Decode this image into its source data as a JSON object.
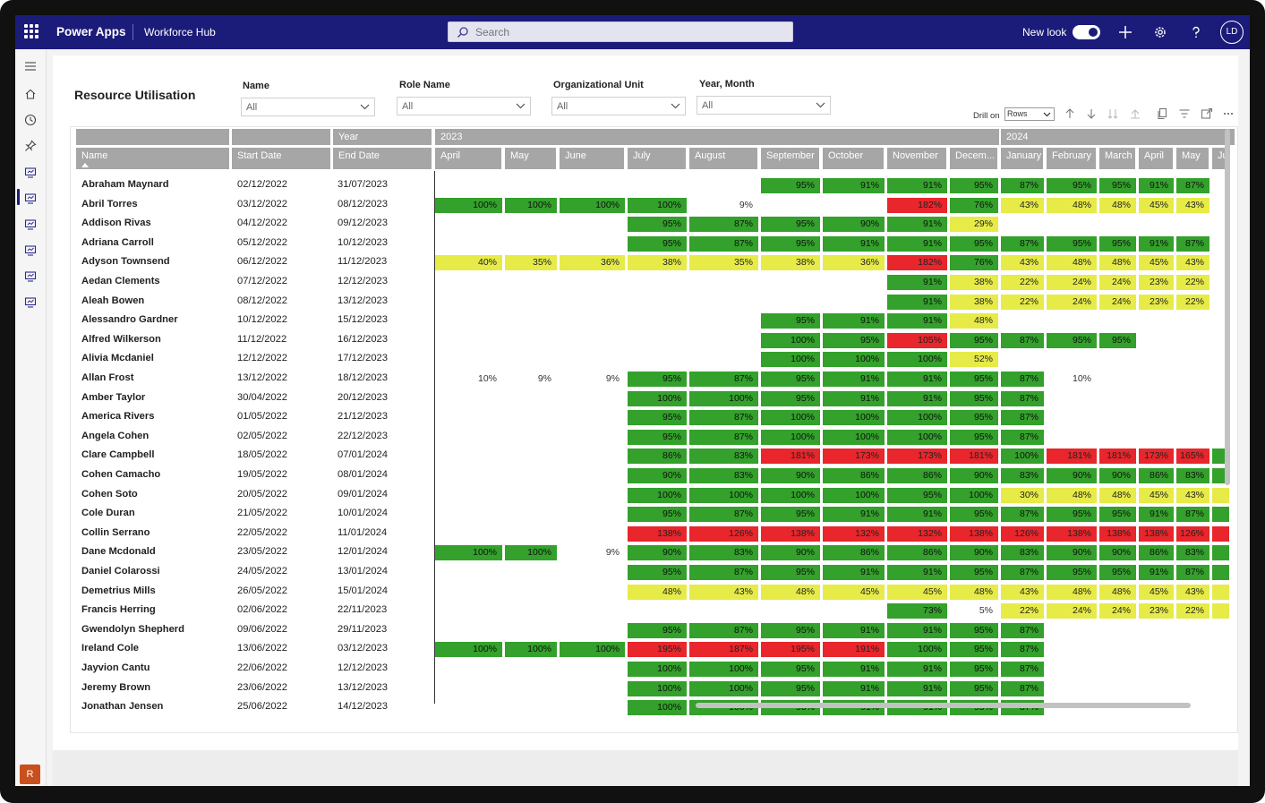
{
  "app": {
    "title": "Power Apps",
    "hub": "Workforce Hub",
    "search_placeholder": "Search",
    "new_look_label": "New look",
    "new_look_on": true,
    "user_initials": "LD",
    "nav_initial": "R"
  },
  "report": {
    "title": "Resource Utilisation",
    "slicers": [
      {
        "label": "Name",
        "value": "All"
      },
      {
        "label": "Role Name",
        "value": "All"
      },
      {
        "label": "Organizational Unit",
        "value": "All"
      },
      {
        "label": "Year, Month",
        "value": "All"
      }
    ],
    "drill_label": "Drill on",
    "drill_value": "Rows"
  },
  "table": {
    "row_header_labels": [
      "Name",
      "Start Date",
      "End Date"
    ],
    "year_header_label": "Year",
    "years": [
      {
        "label": "2023",
        "months": [
          "April",
          "May",
          "June",
          "July",
          "August",
          "September",
          "October",
          "November",
          "Decem..."
        ]
      },
      {
        "label": "2024",
        "months": [
          "January",
          "February",
          "March",
          "April",
          "May",
          "Ju"
        ]
      }
    ],
    "rows": [
      {
        "name": "Abraham Maynard",
        "start": "02/12/2022",
        "end": "31/07/2023",
        "cells": [
          null,
          null,
          null,
          null,
          null,
          "95%",
          "91%",
          "91%",
          "95%",
          "87%",
          "95%",
          "95%",
          "91%",
          "87%",
          null
        ]
      },
      {
        "name": "Abril Torres",
        "start": "03/12/2022",
        "end": "08/12/2023",
        "cells": [
          "100%",
          "100%",
          "100%",
          "100%",
          "9%",
          null,
          null,
          "182%",
          "76%",
          "43%",
          "48%",
          "48%",
          "45%",
          "43%",
          null
        ]
      },
      {
        "name": "Addison Rivas",
        "start": "04/12/2022",
        "end": "09/12/2023",
        "cells": [
          null,
          null,
          null,
          "95%",
          "87%",
          "95%",
          "90%",
          "91%",
          "29%",
          null,
          null,
          null,
          null,
          null,
          null
        ]
      },
      {
        "name": "Adriana Carroll",
        "start": "05/12/2022",
        "end": "10/12/2023",
        "cells": [
          null,
          null,
          null,
          "95%",
          "87%",
          "95%",
          "91%",
          "91%",
          "95%",
          "87%",
          "95%",
          "95%",
          "91%",
          "87%",
          null
        ]
      },
      {
        "name": "Adyson Townsend",
        "start": "06/12/2022",
        "end": "11/12/2023",
        "cells": [
          "40%",
          "35%",
          "36%",
          "38%",
          "35%",
          "38%",
          "36%",
          "182%",
          "76%",
          "43%",
          "48%",
          "48%",
          "45%",
          "43%",
          null
        ]
      },
      {
        "name": "Aedan Clements",
        "start": "07/12/2022",
        "end": "12/12/2023",
        "cells": [
          null,
          null,
          null,
          null,
          null,
          null,
          null,
          "91%",
          "38%",
          "22%",
          "24%",
          "24%",
          "23%",
          "22%",
          null
        ]
      },
      {
        "name": "Aleah Bowen",
        "start": "08/12/2022",
        "end": "13/12/2023",
        "cells": [
          null,
          null,
          null,
          null,
          null,
          null,
          null,
          "91%",
          "38%",
          "22%",
          "24%",
          "24%",
          "23%",
          "22%",
          null
        ]
      },
      {
        "name": "Alessandro Gardner",
        "start": "10/12/2022",
        "end": "15/12/2023",
        "cells": [
          null,
          null,
          null,
          null,
          null,
          "95%",
          "91%",
          "91%",
          "48%",
          null,
          null,
          null,
          null,
          null,
          null
        ]
      },
      {
        "name": "Alfred Wilkerson",
        "start": "11/12/2022",
        "end": "16/12/2023",
        "cells": [
          null,
          null,
          null,
          null,
          null,
          "100%",
          "95%",
          "105%",
          "95%",
          "87%",
          "95%",
          "95%",
          null,
          null,
          null
        ]
      },
      {
        "name": "Alivia Mcdaniel",
        "start": "12/12/2022",
        "end": "17/12/2023",
        "cells": [
          null,
          null,
          null,
          null,
          null,
          "100%",
          "100%",
          "100%",
          "52%",
          null,
          null,
          null,
          null,
          null,
          null
        ]
      },
      {
        "name": "Allan Frost",
        "start": "13/12/2022",
        "end": "18/12/2023",
        "cells": [
          "10%",
          "9%",
          "9%",
          "95%",
          "87%",
          "95%",
          "91%",
          "91%",
          "95%",
          "87%",
          "10%",
          null,
          null,
          null,
          null
        ]
      },
      {
        "name": "Amber Taylor",
        "start": "30/04/2022",
        "end": "20/12/2023",
        "cells": [
          null,
          null,
          null,
          "100%",
          "100%",
          "95%",
          "91%",
          "91%",
          "95%",
          "87%",
          null,
          null,
          null,
          null,
          null
        ]
      },
      {
        "name": "America Rivers",
        "start": "01/05/2022",
        "end": "21/12/2023",
        "cells": [
          null,
          null,
          null,
          "95%",
          "87%",
          "100%",
          "100%",
          "100%",
          "95%",
          "87%",
          null,
          null,
          null,
          null,
          null
        ]
      },
      {
        "name": "Angela Cohen",
        "start": "02/05/2022",
        "end": "22/12/2023",
        "cells": [
          null,
          null,
          null,
          "95%",
          "87%",
          "100%",
          "100%",
          "100%",
          "95%",
          "87%",
          null,
          null,
          null,
          null,
          null
        ]
      },
      {
        "name": "Clare Campbell",
        "start": "18/05/2022",
        "end": "07/01/2024",
        "cells": [
          null,
          null,
          null,
          "86%",
          "83%",
          "181%",
          "173%",
          "173%",
          "181%",
          "100%",
          "181%",
          "181%",
          "173%",
          "165%",
          ""
        ]
      },
      {
        "name": "Cohen Camacho",
        "start": "19/05/2022",
        "end": "08/01/2024",
        "cells": [
          null,
          null,
          null,
          "90%",
          "83%",
          "90%",
          "86%",
          "86%",
          "90%",
          "83%",
          "90%",
          "90%",
          "86%",
          "83%",
          ""
        ]
      },
      {
        "name": "Cohen Soto",
        "start": "20/05/2022",
        "end": "09/01/2024",
        "cells": [
          null,
          null,
          null,
          "100%",
          "100%",
          "100%",
          "100%",
          "95%",
          "100%",
          "30%",
          "48%",
          "48%",
          "45%",
          "43%",
          ""
        ]
      },
      {
        "name": "Cole Duran",
        "start": "21/05/2022",
        "end": "10/01/2024",
        "cells": [
          null,
          null,
          null,
          "95%",
          "87%",
          "95%",
          "91%",
          "91%",
          "95%",
          "87%",
          "95%",
          "95%",
          "91%",
          "87%",
          ""
        ]
      },
      {
        "name": "Collin Serrano",
        "start": "22/05/2022",
        "end": "11/01/2024",
        "cells": [
          null,
          null,
          null,
          "138%",
          "126%",
          "138%",
          "132%",
          "132%",
          "138%",
          "126%",
          "138%",
          "138%",
          "138%",
          "126%",
          ""
        ]
      },
      {
        "name": "Dane Mcdonald",
        "start": "23/05/2022",
        "end": "12/01/2024",
        "cells": [
          "100%",
          "100%",
          "9%",
          "90%",
          "83%",
          "90%",
          "86%",
          "86%",
          "90%",
          "83%",
          "90%",
          "90%",
          "86%",
          "83%",
          ""
        ]
      },
      {
        "name": "Daniel Colarossi",
        "start": "24/05/2022",
        "end": "13/01/2024",
        "cells": [
          null,
          null,
          null,
          "95%",
          "87%",
          "95%",
          "91%",
          "91%",
          "95%",
          "87%",
          "95%",
          "95%",
          "91%",
          "87%",
          ""
        ]
      },
      {
        "name": "Demetrius Mills",
        "start": "26/05/2022",
        "end": "15/01/2024",
        "cells": [
          null,
          null,
          null,
          "48%",
          "43%",
          "48%",
          "45%",
          "45%",
          "48%",
          "43%",
          "48%",
          "48%",
          "45%",
          "43%",
          ""
        ]
      },
      {
        "name": "Francis Herring",
        "start": "02/06/2022",
        "end": "22/11/2023",
        "cells": [
          null,
          null,
          null,
          null,
          null,
          null,
          null,
          "73%",
          "5%",
          "22%",
          "24%",
          "24%",
          "23%",
          "22%",
          ""
        ]
      },
      {
        "name": "Gwendolyn Shepherd",
        "start": "09/06/2022",
        "end": "29/11/2023",
        "cells": [
          null,
          null,
          null,
          "95%",
          "87%",
          "95%",
          "91%",
          "91%",
          "95%",
          "87%",
          null,
          null,
          null,
          null,
          null
        ]
      },
      {
        "name": "Ireland Cole",
        "start": "13/06/2022",
        "end": "03/12/2023",
        "cells": [
          "100%",
          "100%",
          "100%",
          "195%",
          "187%",
          "195%",
          "191%",
          "100%",
          "95%",
          "87%",
          null,
          null,
          null,
          null,
          null
        ]
      },
      {
        "name": "Jayvion Cantu",
        "start": "22/06/2022",
        "end": "12/12/2023",
        "cells": [
          null,
          null,
          null,
          "100%",
          "100%",
          "95%",
          "91%",
          "91%",
          "95%",
          "87%",
          null,
          null,
          null,
          null,
          null
        ]
      },
      {
        "name": "Jeremy Brown",
        "start": "23/06/2022",
        "end": "13/12/2023",
        "cells": [
          null,
          null,
          null,
          "100%",
          "100%",
          "95%",
          "91%",
          "91%",
          "95%",
          "87%",
          null,
          null,
          null,
          null,
          null
        ]
      },
      {
        "name": "Jonathan Jensen",
        "start": "25/06/2022",
        "end": "14/12/2023",
        "cells": [
          null,
          null,
          null,
          "100%",
          "100%",
          "95%",
          "91%",
          "91%",
          "95%",
          "87%",
          null,
          null,
          null,
          null,
          null
        ]
      }
    ],
    "color_scale": {
      "green": "#33a12b",
      "yellow": "#e6eb48",
      "red": "#e8262c"
    },
    "blank_cell_colors": [
      {
        "row": 14,
        "col": 14,
        "color": "#33a12b"
      },
      {
        "row": 15,
        "col": 14,
        "color": "#33a12b"
      },
      {
        "row": 16,
        "col": 14,
        "color": "#e6eb48"
      },
      {
        "row": 17,
        "col": 14,
        "color": "#33a12b"
      },
      {
        "row": 18,
        "col": 14,
        "color": "#e8262c"
      },
      {
        "row": 19,
        "col": 14,
        "color": "#33a12b"
      },
      {
        "row": 20,
        "col": 14,
        "color": "#33a12b"
      },
      {
        "row": 21,
        "col": 14,
        "color": "#e6eb48"
      },
      {
        "row": 22,
        "col": 14,
        "color": "#e6eb48"
      }
    ]
  }
}
